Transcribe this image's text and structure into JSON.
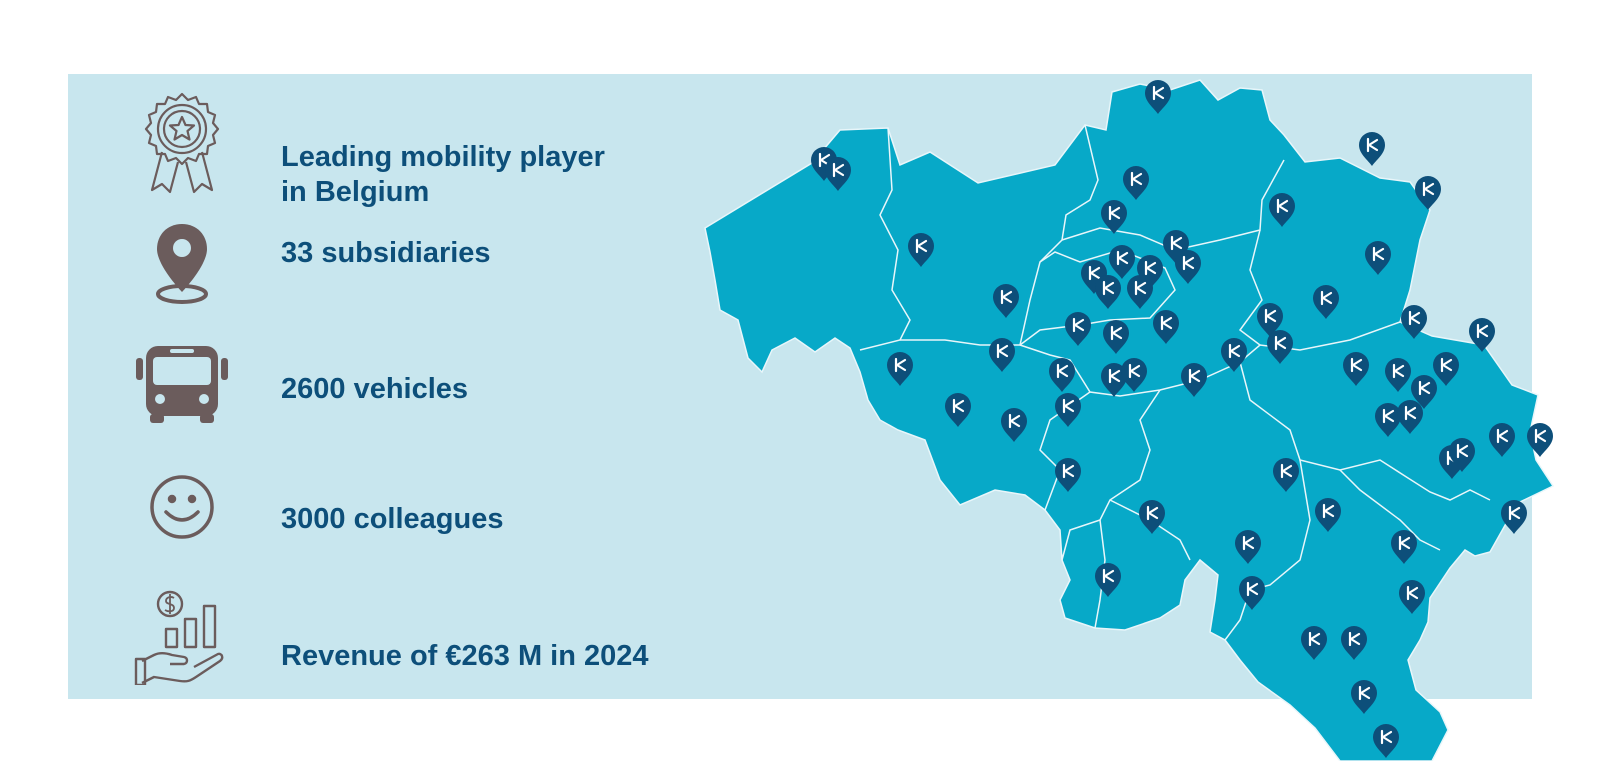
{
  "colors": {
    "panel_bg": "#c8e6ee",
    "map_fill": "#07a9c8",
    "border": "#e8f6fa",
    "pin": "#0d4f7a",
    "icon": "#6b5c5c",
    "text": "#0d4f7a"
  },
  "facts": [
    {
      "icon": "award-ribbon-icon",
      "label": "Leading mobility player\nin Belgium"
    },
    {
      "icon": "location-pin-icon",
      "label": "33 subsidiaries"
    },
    {
      "icon": "bus-icon",
      "label": "2600 vehicles"
    },
    {
      "icon": "smiley-face-icon",
      "label": "3000 colleagues"
    },
    {
      "icon": "revenue-chart-hand-icon",
      "label": "Revenue of €263 M in 2024"
    }
  ],
  "map": {
    "country": "Belgium",
    "pin_icon": "keolis-k-marker-icon",
    "pin_count": 58
  }
}
